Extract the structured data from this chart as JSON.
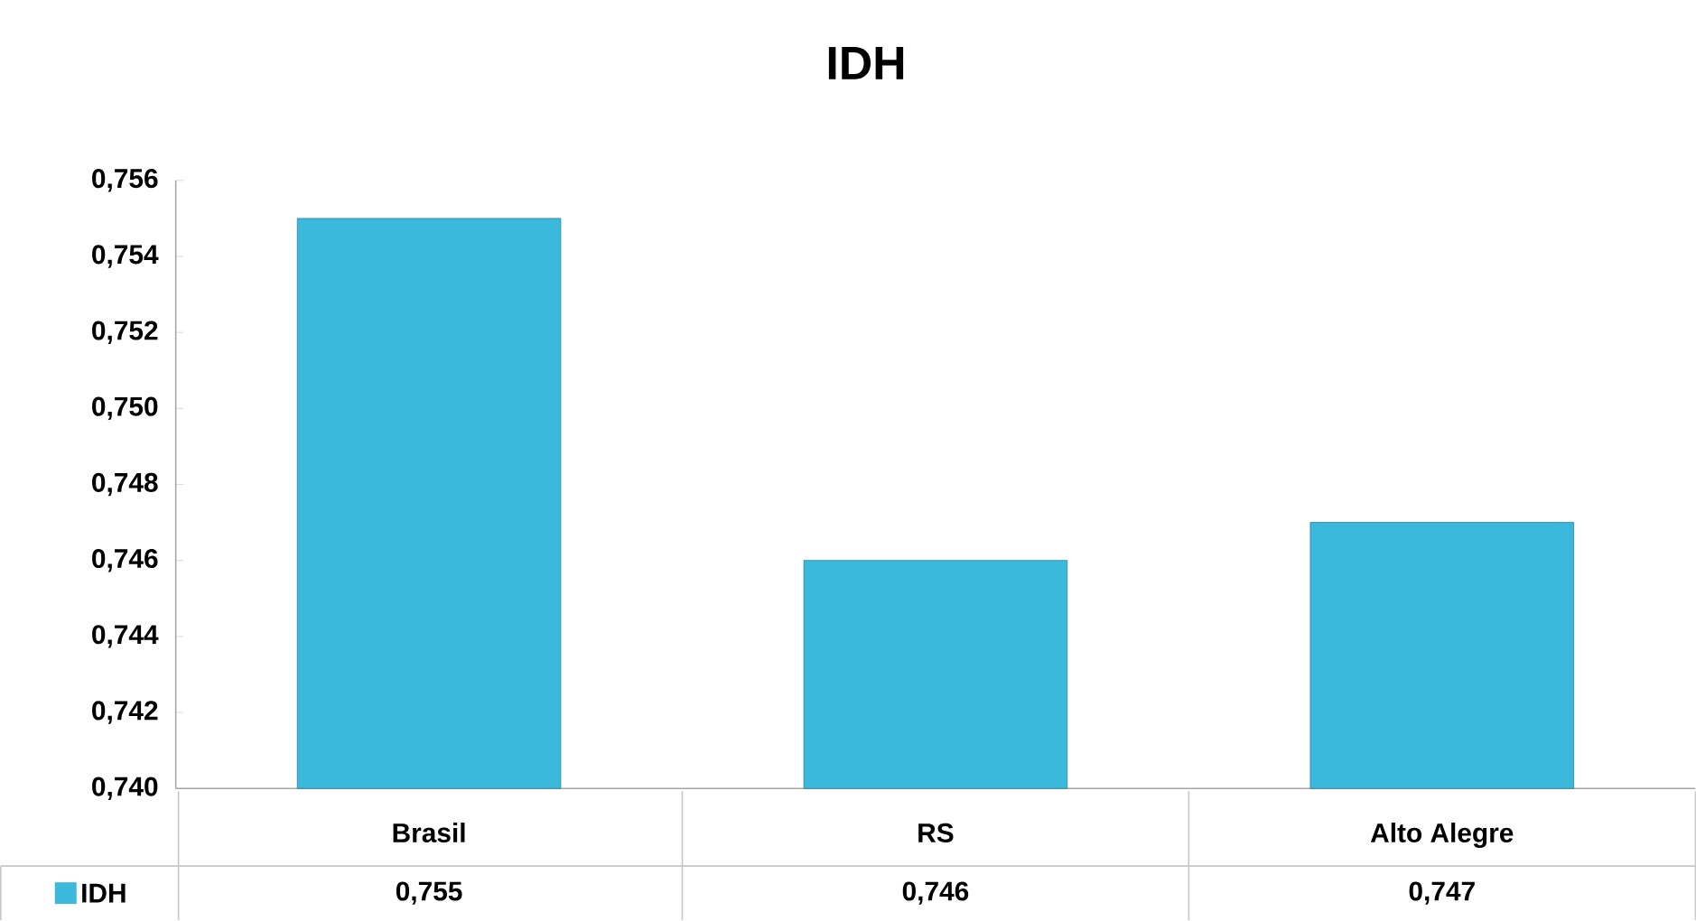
{
  "chart_data": {
    "type": "bar",
    "title": "IDH",
    "categories": [
      "Brasil",
      "RS",
      "Alto Alegre"
    ],
    "series": [
      {
        "name": "IDH",
        "color": "#3bb9dd",
        "values": [
          0.755,
          0.746,
          0.747
        ],
        "value_labels": [
          "0,755",
          "0,746",
          "0,747"
        ]
      }
    ],
    "ylim": [
      0.74,
      0.756
    ],
    "yticks": [
      {
        "value": 0.74,
        "label": "0,740"
      },
      {
        "value": 0.742,
        "label": "0,742"
      },
      {
        "value": 0.744,
        "label": "0,744"
      },
      {
        "value": 0.746,
        "label": "0,746"
      },
      {
        "value": 0.748,
        "label": "0,748"
      },
      {
        "value": 0.75,
        "label": "0,750"
      },
      {
        "value": 0.752,
        "label": "0,752"
      },
      {
        "value": 0.754,
        "label": "0,754"
      },
      {
        "value": 0.756,
        "label": "0,756"
      }
    ],
    "legend": "bottom left",
    "grid": false
  }
}
